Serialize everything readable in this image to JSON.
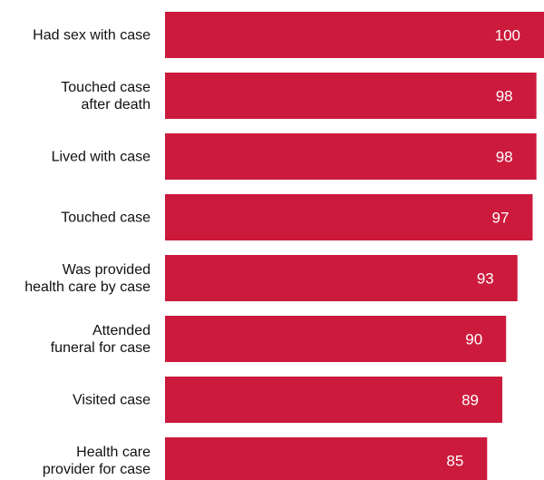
{
  "chart_data": {
    "type": "bar",
    "orientation": "horizontal",
    "categories": [
      [
        "Had sex with case"
      ],
      [
        "Touched case",
        "after death"
      ],
      [
        "Lived with case"
      ],
      [
        "Touched case"
      ],
      [
        "Was provided",
        "health care by case"
      ],
      [
        "Attended",
        "funeral for case"
      ],
      [
        "Visited case"
      ],
      [
        "Health care",
        "provider for case"
      ]
    ],
    "values": [
      100,
      98,
      98,
      97,
      93,
      90,
      89,
      85
    ],
    "data_labels": [
      "100",
      "98",
      "98",
      "97",
      "93",
      "90",
      "89",
      "85"
    ],
    "title": "",
    "xlabel": "",
    "ylabel": "",
    "xlim": [
      0,
      100
    ],
    "grid": false,
    "legend": "none",
    "bar_color": "#cc1a3c"
  }
}
